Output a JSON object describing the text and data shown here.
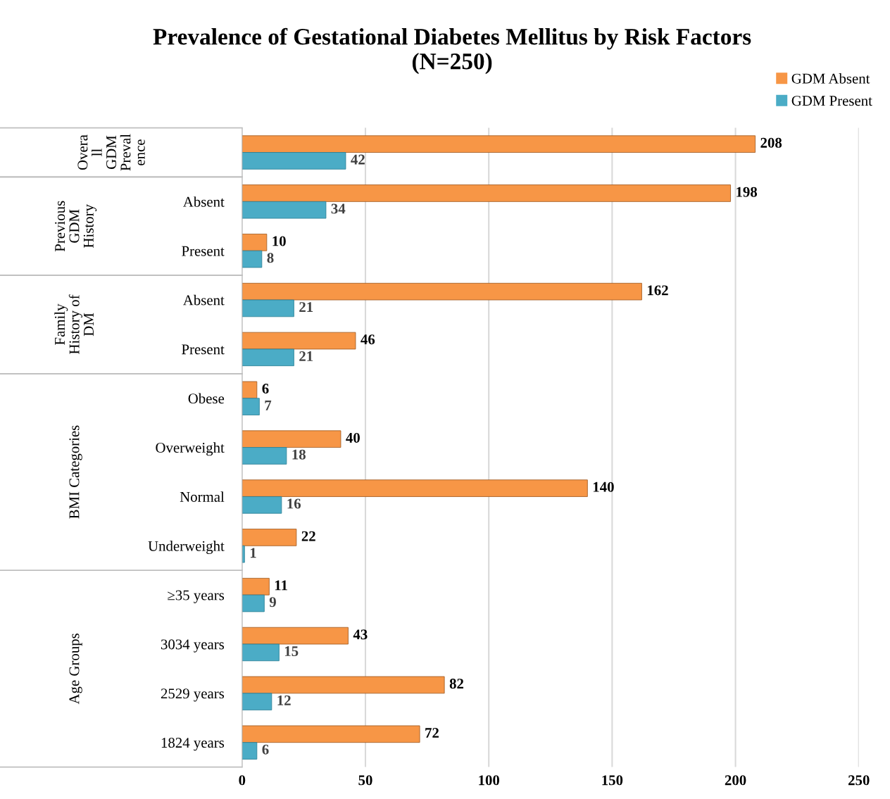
{
  "chart_data": {
    "type": "bar",
    "orientation": "horizontal",
    "title": "Prevalence of Gestational Diabetes Mellitus by Risk Factors\n(N=250)",
    "categories": [
      null,
      "Absent",
      "Present",
      "Absent",
      "Present",
      "Obese",
      "Overweight",
      "Normal",
      "Underweight",
      "≥35 years",
      "3034 years",
      "2529 years",
      "1824 years"
    ],
    "series": [
      {
        "name": "GDM Absent",
        "color": "#f79646",
        "values": [
          208,
          198,
          10,
          162,
          46,
          6,
          40,
          140,
          22,
          11,
          43,
          82,
          72
        ]
      },
      {
        "name": "GDM Present",
        "color": "#4bacc6",
        "values": [
          42,
          34,
          8,
          21,
          21,
          7,
          18,
          16,
          1,
          9,
          15,
          12,
          6
        ]
      }
    ],
    "xlim": [
      0,
      250
    ],
    "xticks": [
      0,
      50,
      100,
      150,
      200,
      250
    ],
    "grid": "x",
    "legend": "top right",
    "data_labels": true,
    "annotations": [
      "Overa\nll\nGDM\nPreval\nence",
      "Previous\nGDM\nHistory",
      "Family\nHistory of\nDM",
      "BMI Categories",
      "Age Groups"
    ]
  }
}
